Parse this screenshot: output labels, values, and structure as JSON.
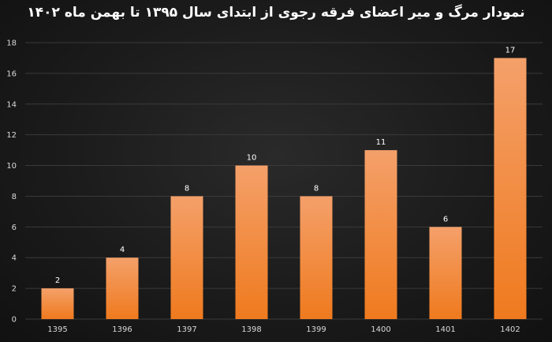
{
  "chart_data": {
    "type": "bar",
    "title": "نمودار مرگ و میر اعضای فرقه رجوی  از ابتدای سال ۱۳۹۵ تا بهمن ماه ۱۴۰۲",
    "categories": [
      "1395",
      "1396",
      "1397",
      "1398",
      "1399",
      "1400",
      "1401",
      "1402"
    ],
    "values": [
      2,
      4,
      8,
      10,
      8,
      11,
      6,
      17
    ],
    "ylim": [
      0,
      18
    ],
    "yticks": [
      0,
      2,
      4,
      6,
      8,
      10,
      12,
      14,
      16,
      18
    ],
    "xlabel": "",
    "ylabel": "",
    "grid": true,
    "data_labels": true,
    "colors": {
      "bar_top": "#f4a06a",
      "bar_bottom": "#ef7a1e",
      "grid": "#3a3a3a",
      "background": "#161616"
    }
  }
}
